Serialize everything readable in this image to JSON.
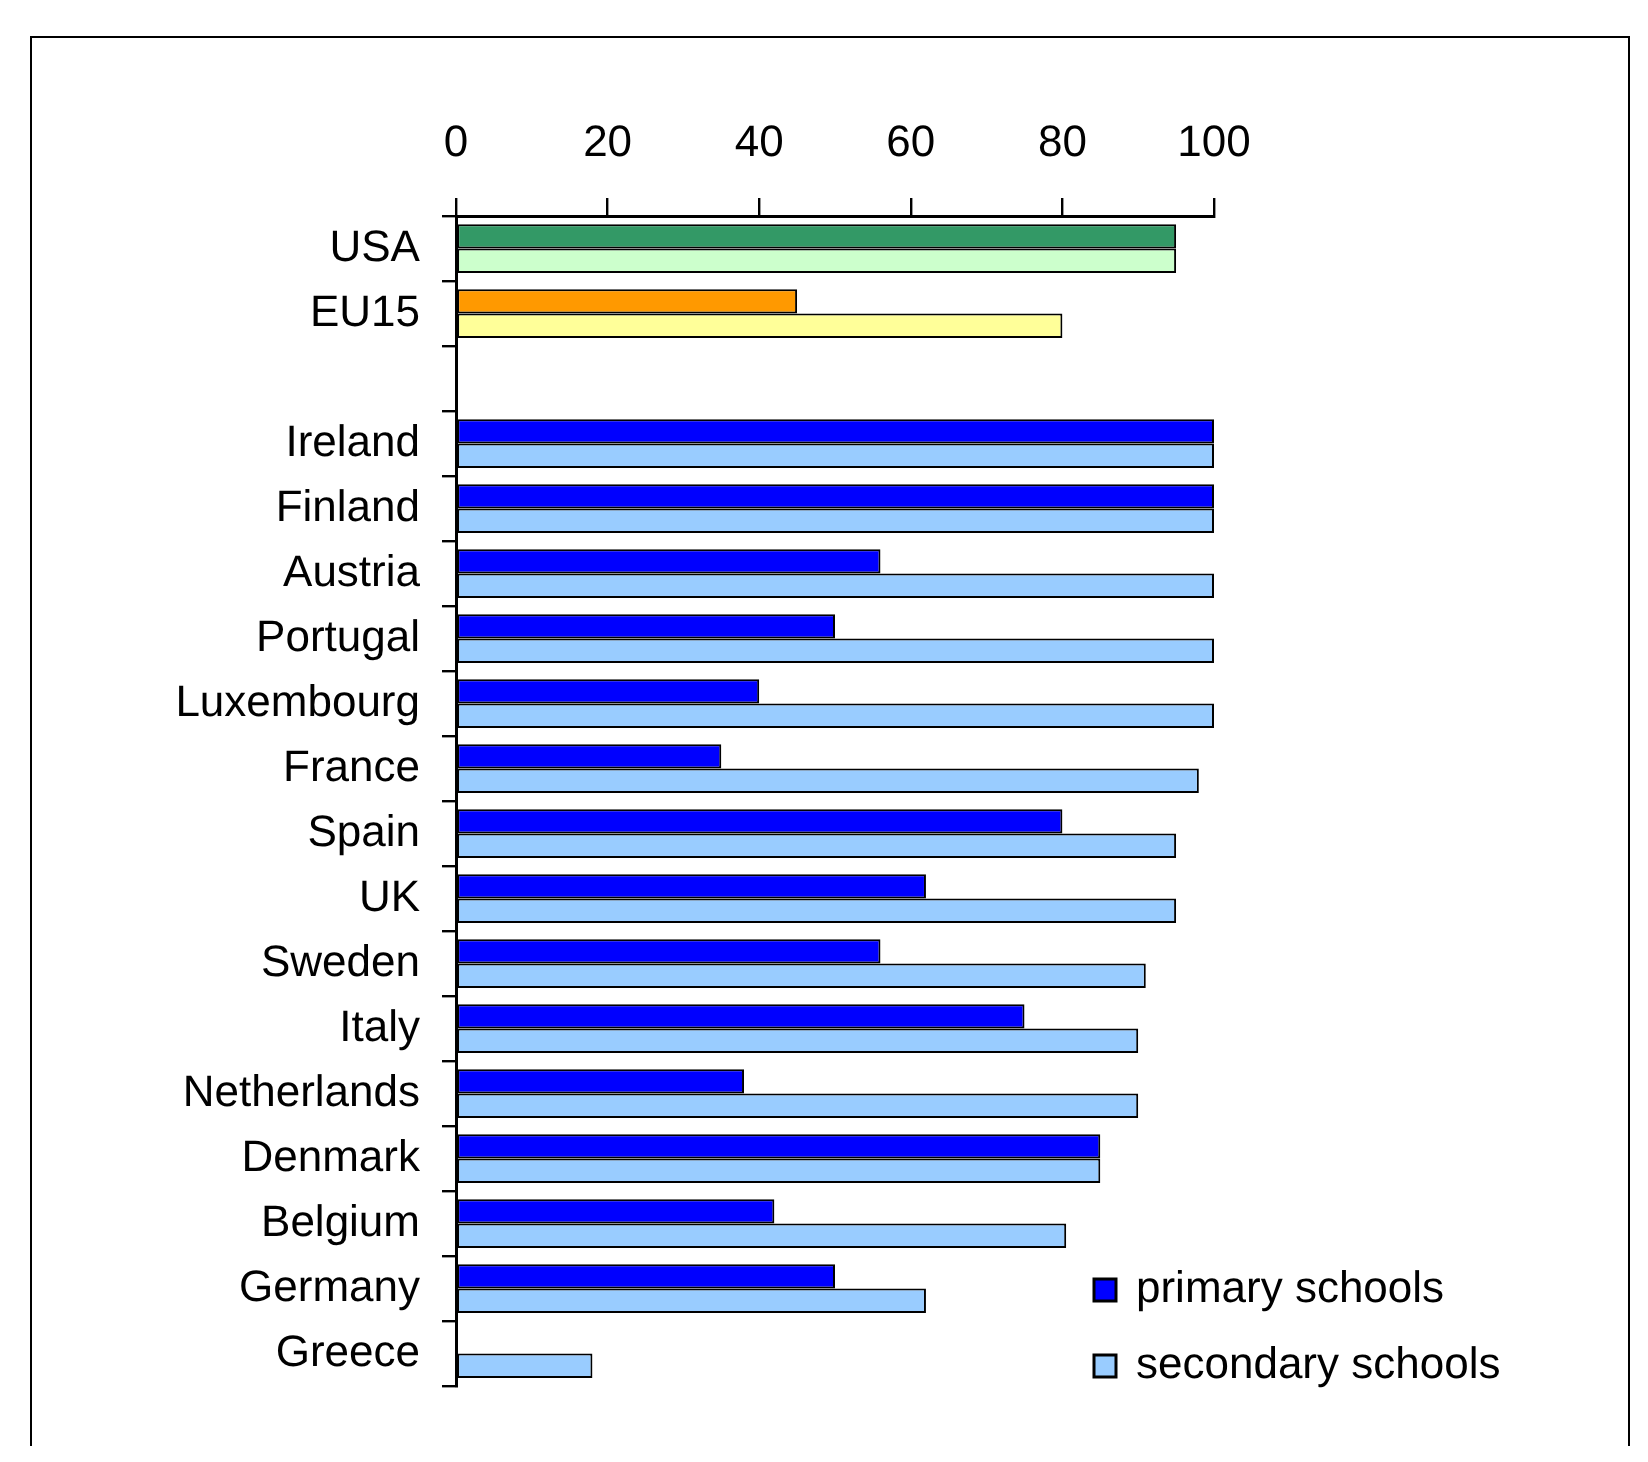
{
  "chart_data": {
    "type": "bar",
    "orientation": "horizontal",
    "categories": [
      "USA",
      "EU15",
      null,
      "Ireland",
      "Finland",
      "Austria",
      "Portugal",
      "Luxembourg",
      "France",
      "Spain",
      "UK",
      "Sweden",
      "Italy",
      "Netherlands",
      "Denmark",
      "Belgium",
      "Germany",
      "Greece"
    ],
    "series": [
      {
        "name": "primary schools",
        "color": "#0000ff",
        "colors": [
          "#339966",
          "#ff9900",
          "#0000ff",
          "#0000ff",
          "#0000ff",
          "#0000ff",
          "#0000ff",
          "#0000ff",
          "#0000ff",
          "#0000ff",
          "#0000ff",
          "#0000ff",
          "#0000ff",
          "#0000ff",
          "#0000ff",
          "#0000ff",
          "#0000ff",
          "#0000ff"
        ],
        "values": [
          95,
          45,
          null,
          100,
          100,
          56,
          50,
          40,
          35,
          80,
          62,
          56,
          75,
          38,
          85,
          42,
          50,
          null
        ]
      },
      {
        "name": "secondary schools",
        "color": "#99ccff",
        "colors": [
          "#ccffcc",
          "#ffff99",
          "#99ccff",
          "#99ccff",
          "#99ccff",
          "#99ccff",
          "#99ccff",
          "#99ccff",
          "#99ccff",
          "#99ccff",
          "#99ccff",
          "#99ccff",
          "#99ccff",
          "#99ccff",
          "#99ccff",
          "#99ccff",
          "#99ccff",
          "#99ccff"
        ],
        "values": [
          95,
          80,
          null,
          100,
          100,
          100,
          100,
          100,
          98,
          95,
          95,
          91,
          90,
          90,
          85,
          80.5,
          62,
          18
        ]
      }
    ],
    "xlim": [
      0,
      100
    ],
    "xticks": [
      0,
      20,
      40,
      60,
      80,
      100
    ],
    "legend": "bottom right"
  }
}
